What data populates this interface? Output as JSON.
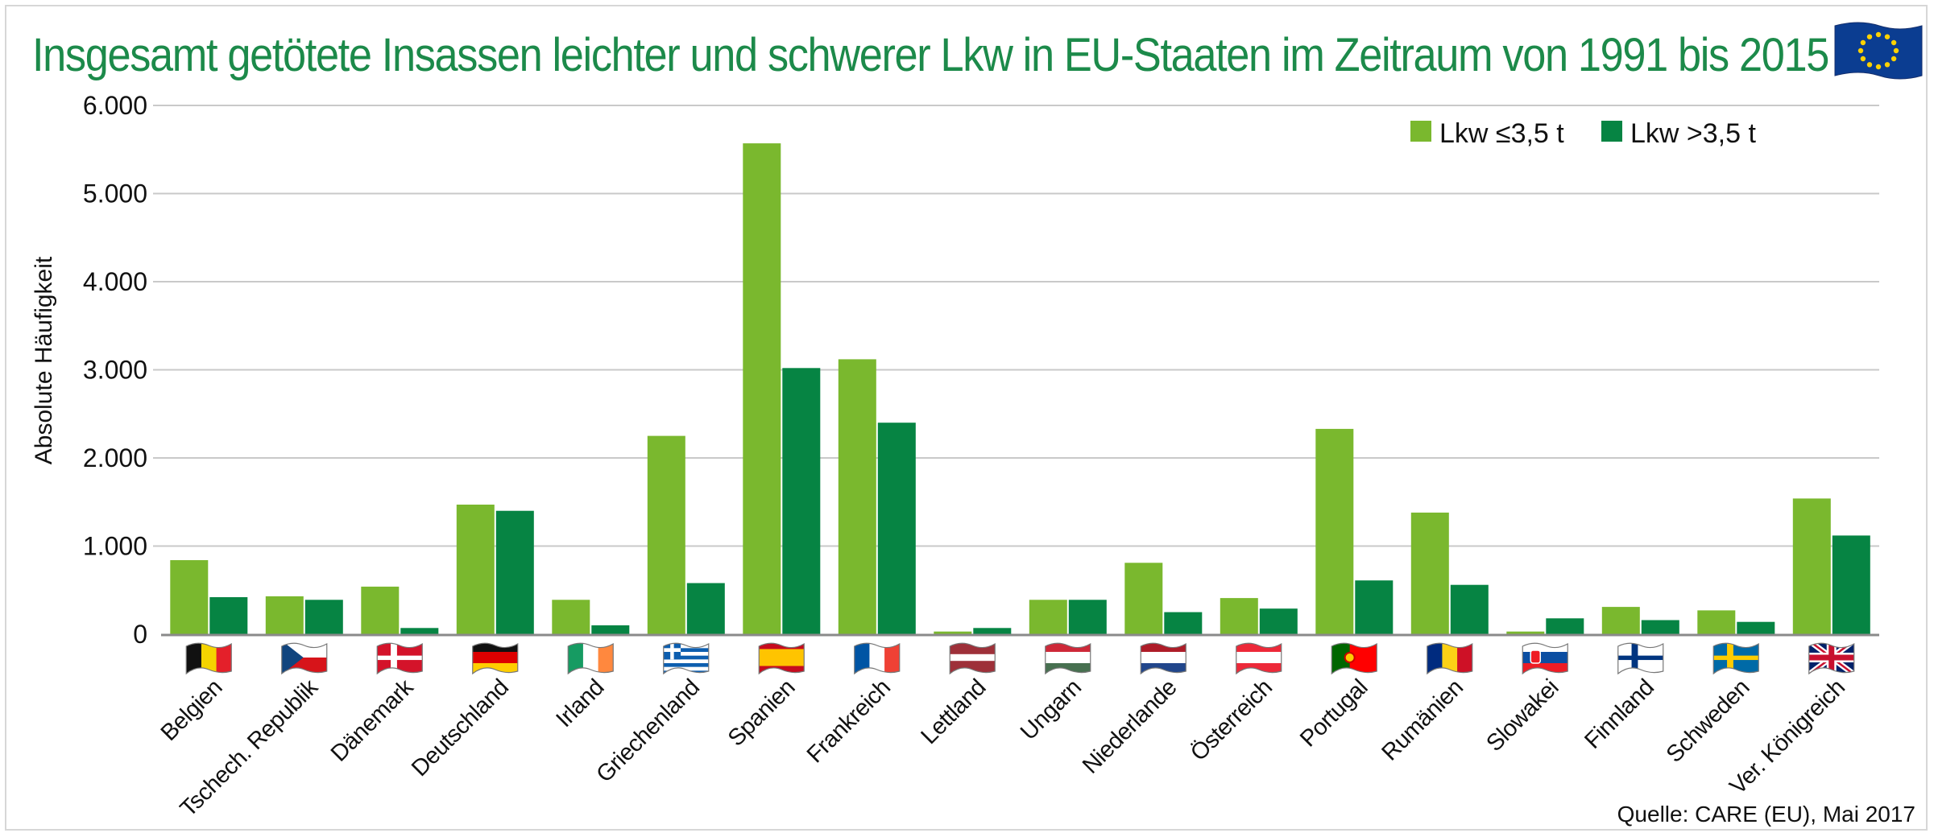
{
  "title": "Insgesamt getötete Insassen leichter und schwerer Lkw in EU-Staaten im Zeitraum von 1991 bis 2015",
  "source": "Quelle:  CARE (EU), Mai 2017",
  "icons": {
    "title_flag": "eu-flag-icon"
  },
  "colors": {
    "light": "#7ab82e",
    "dark": "#068443",
    "title": "#1c8a4a",
    "grid": "#c9c9c9"
  },
  "chart_data": {
    "type": "bar",
    "title": "Insgesamt getötete Insassen leichter und schwerer Lkw in EU-Staaten im Zeitraum von 1991 bis 2015",
    "xlabel": "",
    "ylabel": "Absolute Häufigkeit",
    "ylim": [
      0,
      6000
    ],
    "yticks": [
      0,
      1000,
      2000,
      3000,
      4000,
      5000,
      6000
    ],
    "ytick_labels": [
      "0",
      "1.000",
      "2.000",
      "3.000",
      "4.000",
      "5.000",
      "6.000"
    ],
    "grid": true,
    "legend_position": "top-right",
    "categories": [
      "Belgien",
      "Tschech. Republik",
      "Dänemark",
      "Deutschland",
      "Irland",
      "Griechenland",
      "Spanien",
      "Frankreich",
      "Lettland",
      "Ungarn",
      "Niederlande",
      "Österreich",
      "Portugal",
      "Rumänien",
      "Slowakei",
      "Finnland",
      "Schweden",
      "Ver. Königreich"
    ],
    "flags": [
      "belgium-flag-icon",
      "czech-flag-icon",
      "denmark-flag-icon",
      "germany-flag-icon",
      "ireland-flag-icon",
      "greece-flag-icon",
      "spain-flag-icon",
      "france-flag-icon",
      "latvia-flag-icon",
      "hungary-flag-icon",
      "netherlands-flag-icon",
      "austria-flag-icon",
      "portugal-flag-icon",
      "romania-flag-icon",
      "slovakia-flag-icon",
      "finland-flag-icon",
      "sweden-flag-icon",
      "uk-flag-icon"
    ],
    "series": [
      {
        "name": "Lkw ≤3,5 t",
        "color": "#7ab82e",
        "values": [
          840,
          430,
          540,
          1470,
          390,
          2250,
          5570,
          3120,
          30,
          390,
          810,
          410,
          2330,
          1380,
          30,
          310,
          270,
          1540
        ]
      },
      {
        "name": "Lkw >3,5 t",
        "color": "#068443",
        "values": [
          420,
          390,
          70,
          1400,
          100,
          580,
          3020,
          2400,
          70,
          390,
          250,
          290,
          610,
          560,
          180,
          160,
          140,
          1120
        ]
      }
    ]
  }
}
